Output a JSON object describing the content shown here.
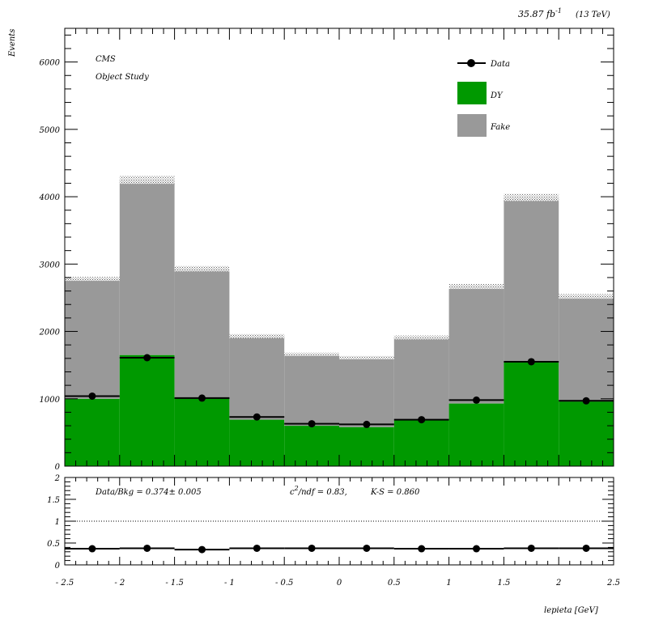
{
  "header": {
    "lumi": "35.87 fb",
    "lumi_exp": "-1",
    "energy": "(13 TeV)"
  },
  "labels": {
    "experiment": "CMS",
    "study": "Object Study"
  },
  "legend": {
    "data": "Data",
    "dy": "DY",
    "fake": "Fake"
  },
  "colors": {
    "dy": "#009900",
    "fake": "#999999",
    "data": "#000000"
  },
  "ratio_text": {
    "data_bkg": "Data/Bkg = 0.374± 0.005",
    "chi2": "c",
    "chi2_exp": "2",
    "chi2_rest": "/ndf = 0.83,",
    "ks": "K-S = 0.860"
  },
  "chart_data": [
    {
      "type": "bar",
      "stacked": true,
      "ylabel": "Events",
      "xlim": [
        -2.5,
        2.5
      ],
      "ylim": [
        0,
        6500
      ],
      "y_ticks": [
        0,
        1000,
        2000,
        3000,
        4000,
        5000,
        6000
      ],
      "bin_edges": [
        -2.5,
        -2.0,
        -1.5,
        -1.0,
        -0.5,
        0.0,
        0.5,
        1.0,
        1.5,
        2.0,
        2.5
      ],
      "series": [
        {
          "name": "DY",
          "values": [
            1000,
            1650,
            1010,
            690,
            600,
            580,
            680,
            930,
            1550,
            960
          ]
        },
        {
          "name": "Fake",
          "values": [
            1780,
            2600,
            1920,
            1240,
            1060,
            1030,
            1230,
            1740,
            2440,
            1560
          ]
        }
      ],
      "uncertainty": [
        30,
        60,
        40,
        30,
        25,
        25,
        30,
        40,
        55,
        35
      ],
      "data": {
        "name": "Data",
        "x": [
          -2.25,
          -1.75,
          -1.25,
          -0.75,
          -0.25,
          0.25,
          0.75,
          1.25,
          1.75,
          2.25
        ],
        "values": [
          1040,
          1610,
          1010,
          730,
          630,
          620,
          690,
          980,
          1550,
          970
        ]
      }
    },
    {
      "type": "scatter",
      "xlabel": "lepieta [GeV]",
      "xlim": [
        -2.5,
        2.5
      ],
      "ylim": [
        0,
        2
      ],
      "x_ticks": [
        "- 2.5",
        "- 2",
        "- 1.5",
        "- 1",
        "- 0.5",
        "0",
        "0.5",
        "1",
        "1.5",
        "2",
        "2.5"
      ],
      "y_ticks": [
        "0",
        "0.5",
        "1",
        "1.5",
        "2"
      ],
      "reference_line": 1,
      "x": [
        -2.25,
        -1.75,
        -1.25,
        -0.75,
        -0.25,
        0.25,
        0.75,
        1.25,
        1.75,
        2.25
      ],
      "values": [
        0.37,
        0.38,
        0.35,
        0.38,
        0.38,
        0.38,
        0.37,
        0.37,
        0.38,
        0.38
      ]
    }
  ]
}
